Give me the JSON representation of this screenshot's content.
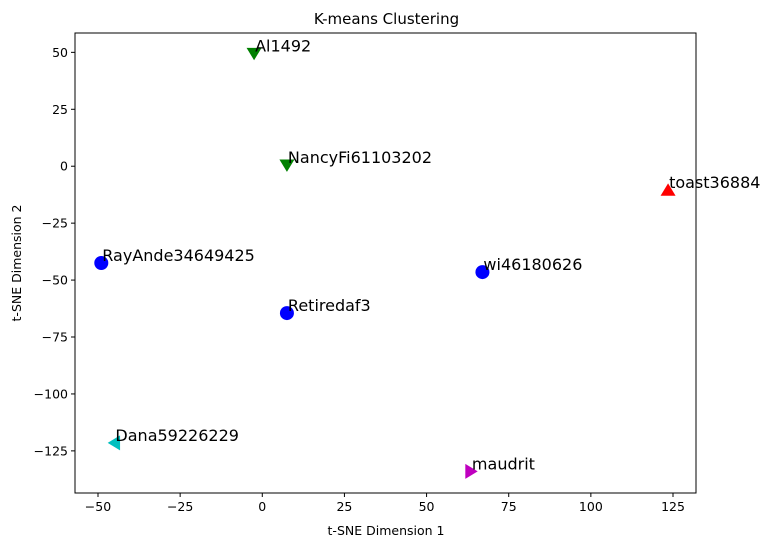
{
  "chart_data": {
    "type": "scatter",
    "title": "K-means  Clustering",
    "xlabel": "t-SNE Dimension 1",
    "ylabel": "t-SNE Dimension 2",
    "xlim": [
      -57,
      132
    ],
    "ylim": [
      -143.5,
      58.5
    ],
    "xticks": [
      -50,
      -25,
      0,
      25,
      50,
      75,
      100,
      125
    ],
    "yticks": [
      50,
      25,
      0,
      -25,
      -50,
      -75,
      -100,
      -125
    ],
    "xtick_labels": [
      "−50",
      "−25",
      "0",
      "25",
      "50",
      "75",
      "100",
      "125"
    ],
    "ytick_labels": [
      "50",
      "25",
      "0",
      "−25",
      "−50",
      "−75",
      "−100",
      "−125"
    ],
    "grid": false,
    "points": [
      {
        "label": "Al1492",
        "x": -2.5,
        "y": 49.5,
        "marker": "triangle-down",
        "color": "#008000"
      },
      {
        "label": "NancyFi61103202",
        "x": 7.5,
        "y": 0.5,
        "marker": "triangle-down",
        "color": "#008000"
      },
      {
        "label": "toast36884",
        "x": 123.5,
        "y": -10.5,
        "marker": "triangle-up",
        "color": "#ff0000"
      },
      {
        "label": "RayAnde34649425",
        "x": -49,
        "y": -42.5,
        "marker": "circle",
        "color": "#0000ff"
      },
      {
        "label": "wi46180626",
        "x": 67,
        "y": -46.5,
        "marker": "circle",
        "color": "#0000ff"
      },
      {
        "label": "Retiredaf3",
        "x": 7.5,
        "y": -64.5,
        "marker": "circle",
        "color": "#0000ff"
      },
      {
        "label": "Dana59226229",
        "x": -45,
        "y": -121.5,
        "marker": "triangle-left",
        "color": "#00bfbf"
      },
      {
        "label": "maudrit",
        "x": 63.5,
        "y": -134,
        "marker": "triangle-right",
        "color": "#bf00bf"
      }
    ]
  }
}
